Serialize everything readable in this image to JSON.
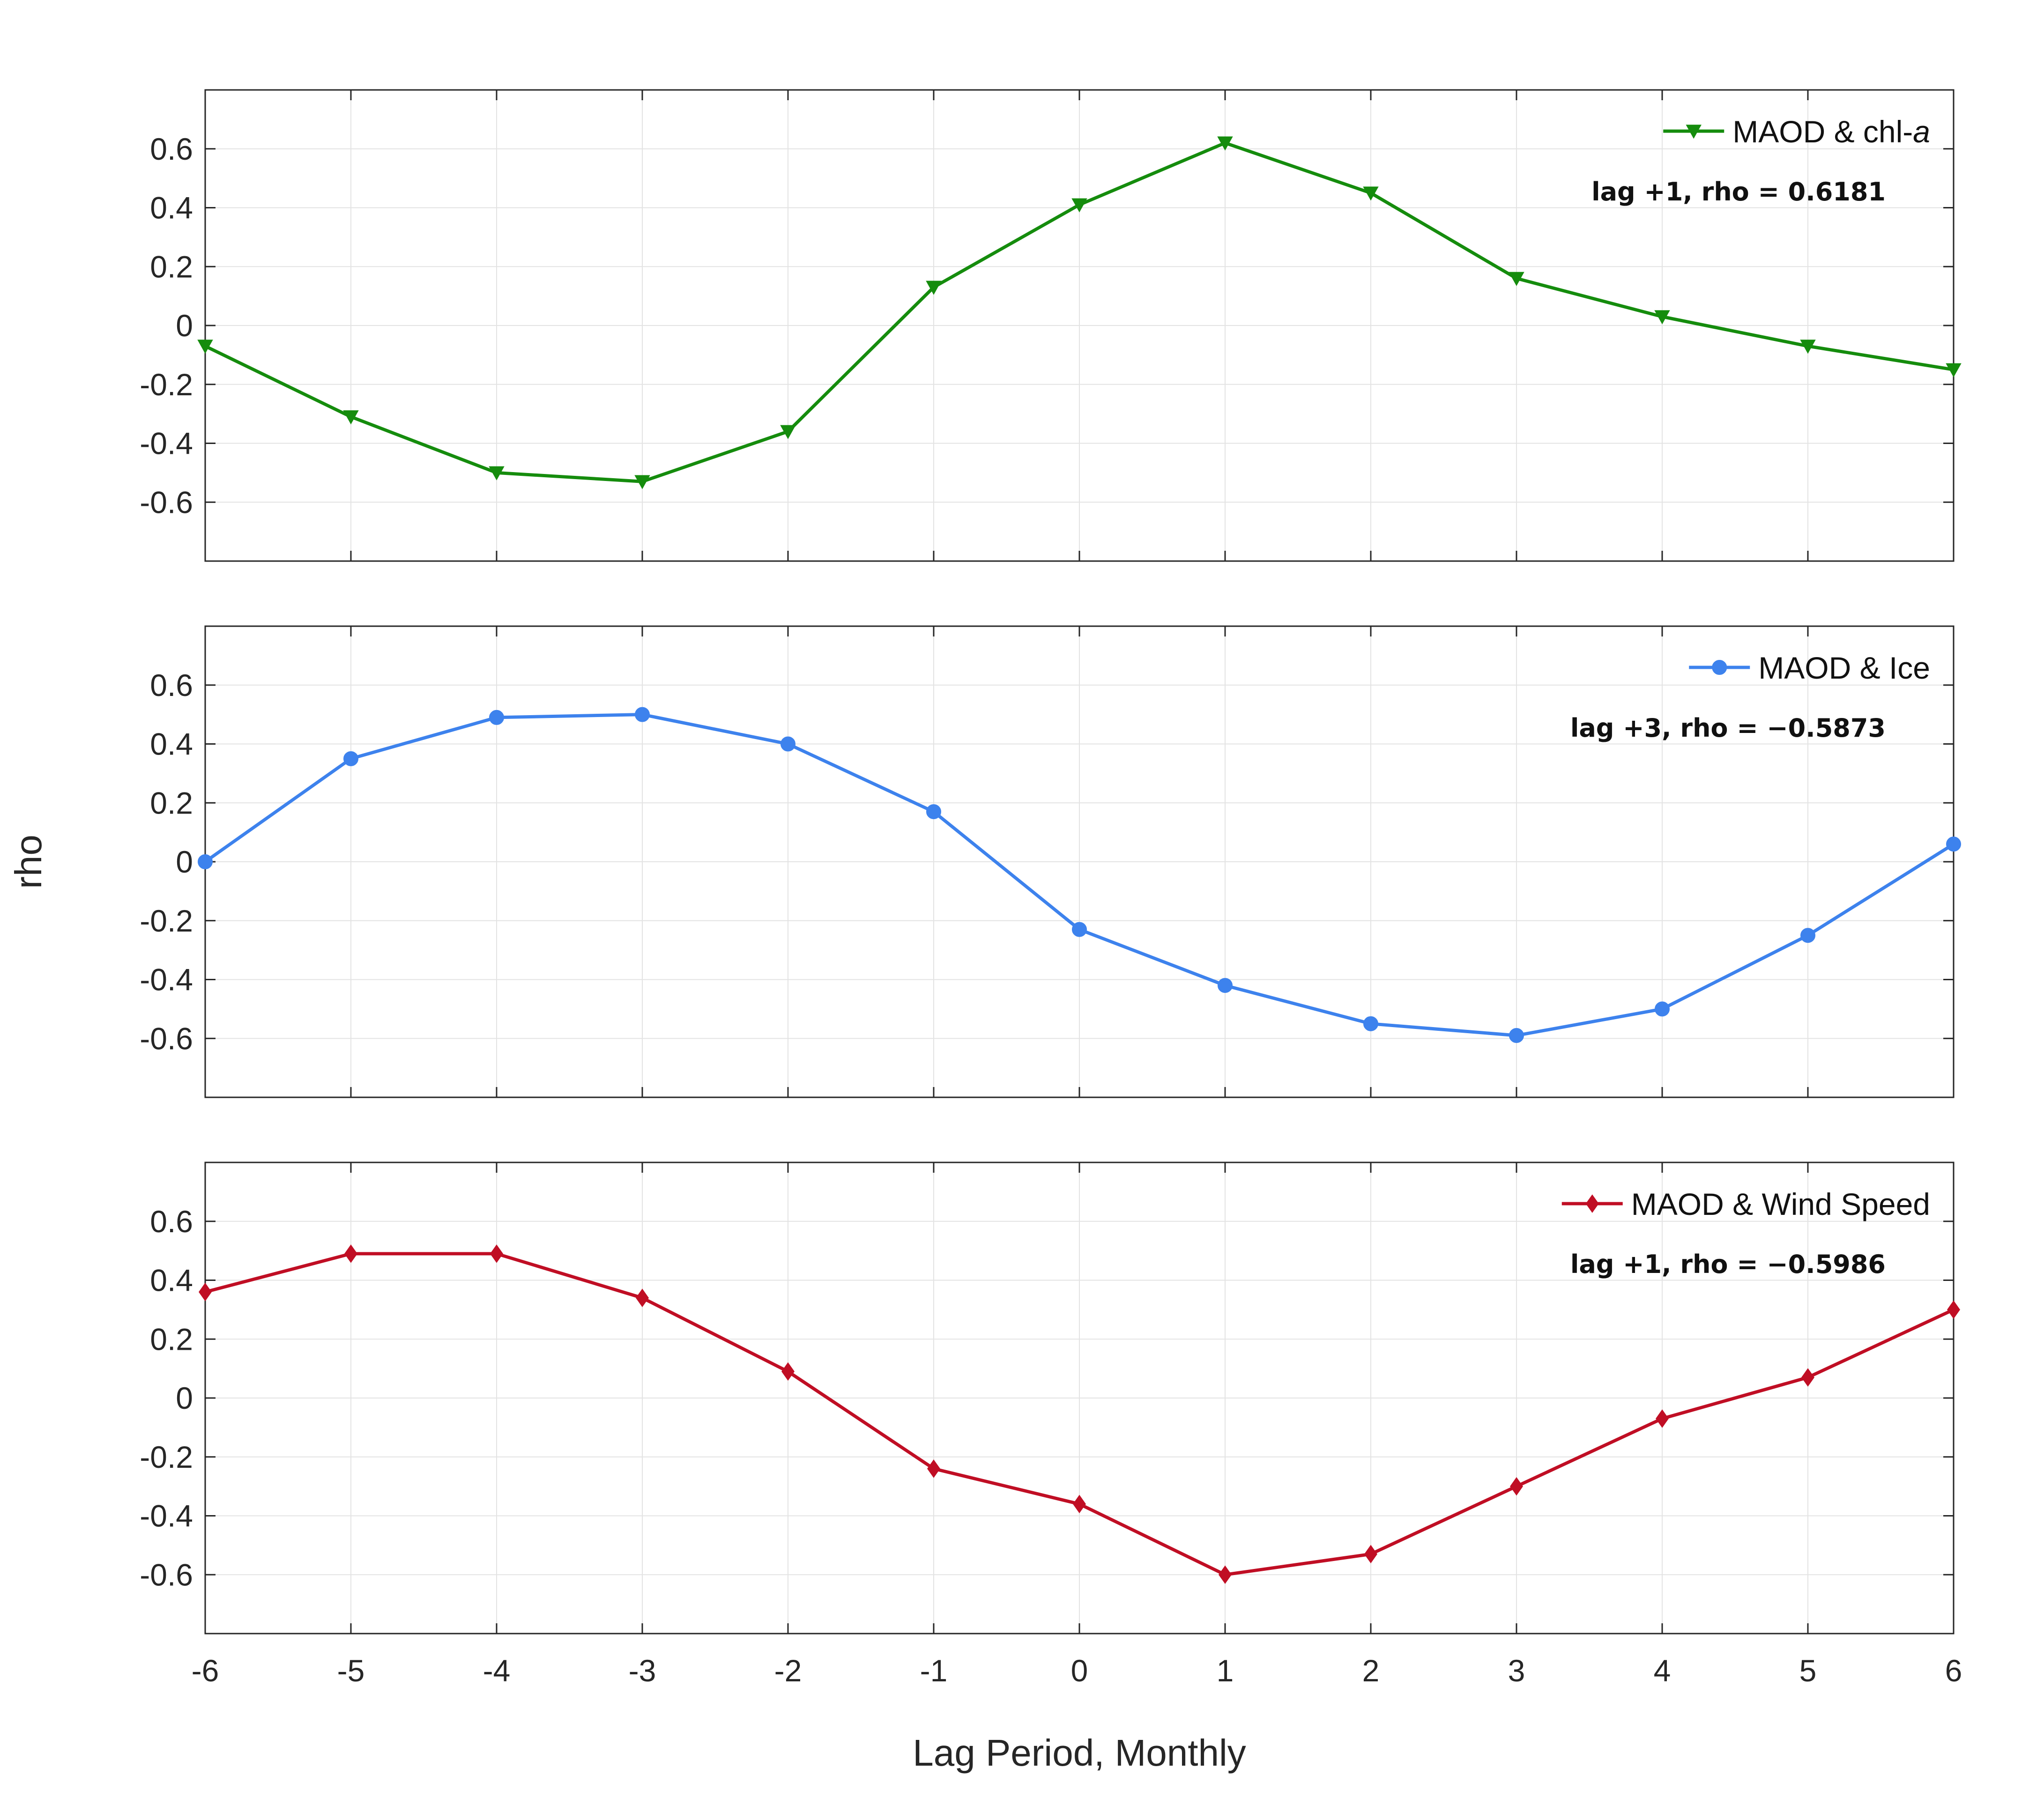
{
  "chart_data": [
    {
      "type": "line",
      "title": "",
      "xlabel": "Lag Period, Monthly",
      "ylabel": "rho",
      "x": [
        -6,
        -5,
        -4,
        -3,
        -2,
        -1,
        0,
        1,
        2,
        3,
        4,
        5,
        6
      ],
      "xlim": [
        -6,
        6
      ],
      "ylim": [
        -0.8,
        0.8
      ],
      "yticks": [
        0.6,
        0.4,
        0.2,
        0,
        -0.2,
        -0.4,
        -0.6
      ],
      "ytick_labels": [
        "0.6",
        "0.4",
        "0.2",
        "0",
        "-0.2",
        "-0.4",
        "-0.6"
      ],
      "xticks": [
        -6,
        -5,
        -4,
        -3,
        -2,
        -1,
        0,
        1,
        2,
        3,
        4,
        5,
        6
      ],
      "xtick_labels": [
        "-6",
        "-5",
        "-4",
        "-3",
        "-2",
        "-1",
        "0",
        "1",
        "2",
        "3",
        "4",
        "5",
        "6"
      ],
      "grid": true,
      "legend_position": "top-right",
      "series": [
        {
          "name_main": "MAOD & chl-",
          "name_italic": "a",
          "color": "#158c0d",
          "marker": "triangle-down",
          "values": [
            -0.07,
            -0.31,
            -0.5,
            -0.53,
            -0.36,
            0.13,
            0.41,
            0.62,
            0.45,
            0.16,
            0.03,
            -0.07,
            -0.15
          ]
        }
      ],
      "annotation": "lag +1, rho = 0.6181"
    },
    {
      "type": "line",
      "title": "",
      "xlabel": "Lag Period, Monthly",
      "ylabel": "rho",
      "x": [
        -6,
        -5,
        -4,
        -3,
        -2,
        -1,
        0,
        1,
        2,
        3,
        4,
        5,
        6
      ],
      "xlim": [
        -6,
        6
      ],
      "ylim": [
        -0.8,
        0.8
      ],
      "yticks": [
        0.6,
        0.4,
        0.2,
        0,
        -0.2,
        -0.4,
        -0.6
      ],
      "ytick_labels": [
        "0.6",
        "0.4",
        "0.2",
        "0",
        "-0.2",
        "-0.4",
        "-0.6"
      ],
      "xticks": [
        -6,
        -5,
        -4,
        -3,
        -2,
        -1,
        0,
        1,
        2,
        3,
        4,
        5,
        6
      ],
      "xtick_labels": [
        "-6",
        "-5",
        "-4",
        "-3",
        "-2",
        "-1",
        "0",
        "1",
        "2",
        "3",
        "4",
        "5",
        "6"
      ],
      "grid": true,
      "legend_position": "top-right",
      "series": [
        {
          "name_main": "MAOD & Ice",
          "name_italic": "",
          "color": "#3d82ed",
          "marker": "circle",
          "values": [
            0.0,
            0.35,
            0.49,
            0.5,
            0.4,
            0.17,
            -0.23,
            -0.42,
            -0.55,
            -0.59,
            -0.5,
            -0.25,
            0.06
          ]
        }
      ],
      "annotation": "lag +3, rho = −0.5873"
    },
    {
      "type": "line",
      "title": "",
      "xlabel": "Lag Period, Monthly",
      "ylabel": "rho",
      "x": [
        -6,
        -5,
        -4,
        -3,
        -2,
        -1,
        0,
        1,
        2,
        3,
        4,
        5,
        6
      ],
      "xlim": [
        -6,
        6
      ],
      "ylim": [
        -0.8,
        0.8
      ],
      "yticks": [
        0.6,
        0.4,
        0.2,
        0,
        -0.2,
        -0.4,
        -0.6
      ],
      "ytick_labels": [
        "0.6",
        "0.4",
        "0.2",
        "0",
        "-0.2",
        "-0.4",
        "-0.6"
      ],
      "xticks": [
        -6,
        -5,
        -4,
        -3,
        -2,
        -1,
        0,
        1,
        2,
        3,
        4,
        5,
        6
      ],
      "xtick_labels": [
        "-6",
        "-5",
        "-4",
        "-3",
        "-2",
        "-1",
        "0",
        "1",
        "2",
        "3",
        "4",
        "5",
        "6"
      ],
      "grid": true,
      "legend_position": "top-right",
      "series": [
        {
          "name_main": "MAOD & Wind Speed",
          "name_italic": "",
          "color": "#c00e24",
          "marker": "diamond",
          "values": [
            0.36,
            0.49,
            0.49,
            0.34,
            0.09,
            -0.24,
            -0.36,
            -0.6,
            -0.53,
            -0.3,
            -0.07,
            0.07,
            0.3
          ]
        }
      ],
      "annotation": "lag +1, rho = −0.5986"
    }
  ],
  "axis_labels": {
    "y": "rho",
    "x": "Lag Period, Monthly"
  }
}
